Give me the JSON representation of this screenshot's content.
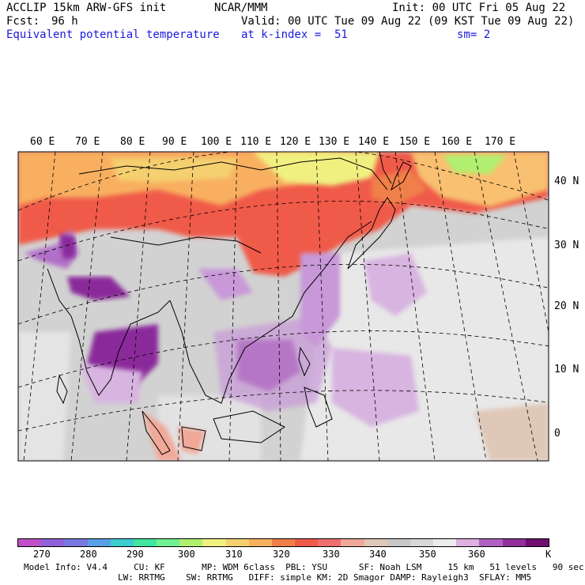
{
  "header": {
    "model": "ACCLIP 15km ARW-GFS init",
    "org": "NCAR/MMM",
    "init": "Init: 00 UTC Fri 05 Aug 22",
    "fcst_label": "Fcst:",
    "fcst_value": "96 h",
    "valid": "Valid: 00 UTC Tue 09 Aug 22 (09 KST Tue 09 Aug 22)",
    "field": "Equivalent potential temperature",
    "level": "at k-index =  51",
    "smooth": "sm= 2"
  },
  "map": {
    "lon_labels": [
      "60 E",
      "70 E",
      "80 E",
      "90 E",
      "100 E",
      "110 E",
      "120 E",
      "130 E",
      "140 E",
      "150 E",
      "160 E",
      "170 E"
    ],
    "lat_labels": [
      "40 N",
      "30 N",
      "20 N",
      "10 N",
      "0"
    ]
  },
  "colorbar": {
    "colors": [
      "#c050c8",
      "#9060d8",
      "#7a78e0",
      "#5aa0e8",
      "#3ccdd0",
      "#40e6a0",
      "#70f090",
      "#b0f070",
      "#f0f080",
      "#f4d070",
      "#f8b060",
      "#f08048",
      "#f05a48",
      "#f07070",
      "#f0a898",
      "#e0c8b8",
      "#c8c8c8",
      "#d8d8d8",
      "#ececec",
      "#e0b0e0",
      "#b060c0",
      "#90309a",
      "#70106e"
    ],
    "labels": [
      "270",
      "280",
      "290",
      "300",
      "310",
      "320",
      "330",
      "340",
      "350",
      "360",
      "K"
    ]
  },
  "model_info": {
    "line1": "Model Info: V4.4     CU: KF       MP: WDM 6class  PBL: YSU      SF: Noah LSM     15 km   51 levels   90 sec",
    "line2": "LW: RRTMG    SW: RRTMG   DIFF: simple KM: 2D Smagor DAMP: Rayleigh3  SFLAY: MM5"
  }
}
